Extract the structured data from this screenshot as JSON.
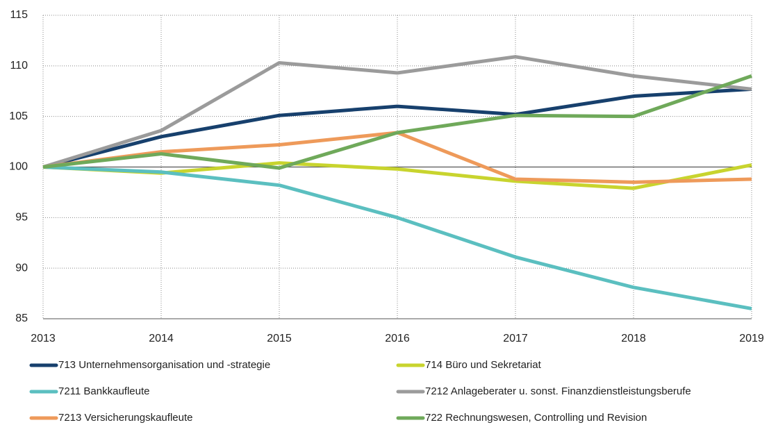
{
  "chart_data": {
    "type": "line",
    "x": [
      2013,
      2014,
      2015,
      2016,
      2017,
      2018,
      2019
    ],
    "xlim": [
      2013,
      2019
    ],
    "xticks": [
      2013,
      2014,
      2015,
      2016,
      2017,
      2018,
      2019
    ],
    "ylim": [
      85,
      115
    ],
    "yticks": [
      85,
      90,
      95,
      100,
      105,
      110,
      115
    ],
    "grid": true,
    "reference_line": 100,
    "legend": "bottom",
    "series": [
      {
        "name": "713 Unternehmensorganisation und -strategie",
        "color": "#17406d",
        "values": [
          100,
          103.0,
          105.1,
          106.0,
          105.2,
          107.0,
          107.7
        ]
      },
      {
        "name": "714 Büro und Sekretariat",
        "color": "#c8d42e",
        "values": [
          100,
          99.4,
          100.4,
          99.8,
          98.6,
          97.9,
          100.2
        ]
      },
      {
        "name": "7211 Bankkaufleute",
        "color": "#5bbfc0",
        "values": [
          100,
          99.5,
          98.2,
          95.0,
          91.1,
          88.1,
          86.0
        ]
      },
      {
        "name": "7212 Anlageberater u. sonst. Finanzdienstleistungsberufe",
        "color": "#9b9b9b",
        "values": [
          100,
          103.6,
          110.3,
          109.3,
          110.9,
          109.0,
          107.7
        ]
      },
      {
        "name": "7213 Versicherungskaufleute",
        "color": "#ee9a5a",
        "values": [
          100,
          101.5,
          102.2,
          103.4,
          98.8,
          98.5,
          98.8
        ]
      },
      {
        "name": "722 Rechnungswesen, Controlling und Revision",
        "color": "#6fa95a",
        "values": [
          100,
          101.3,
          99.9,
          103.4,
          105.1,
          105.0,
          109.0
        ]
      }
    ]
  }
}
